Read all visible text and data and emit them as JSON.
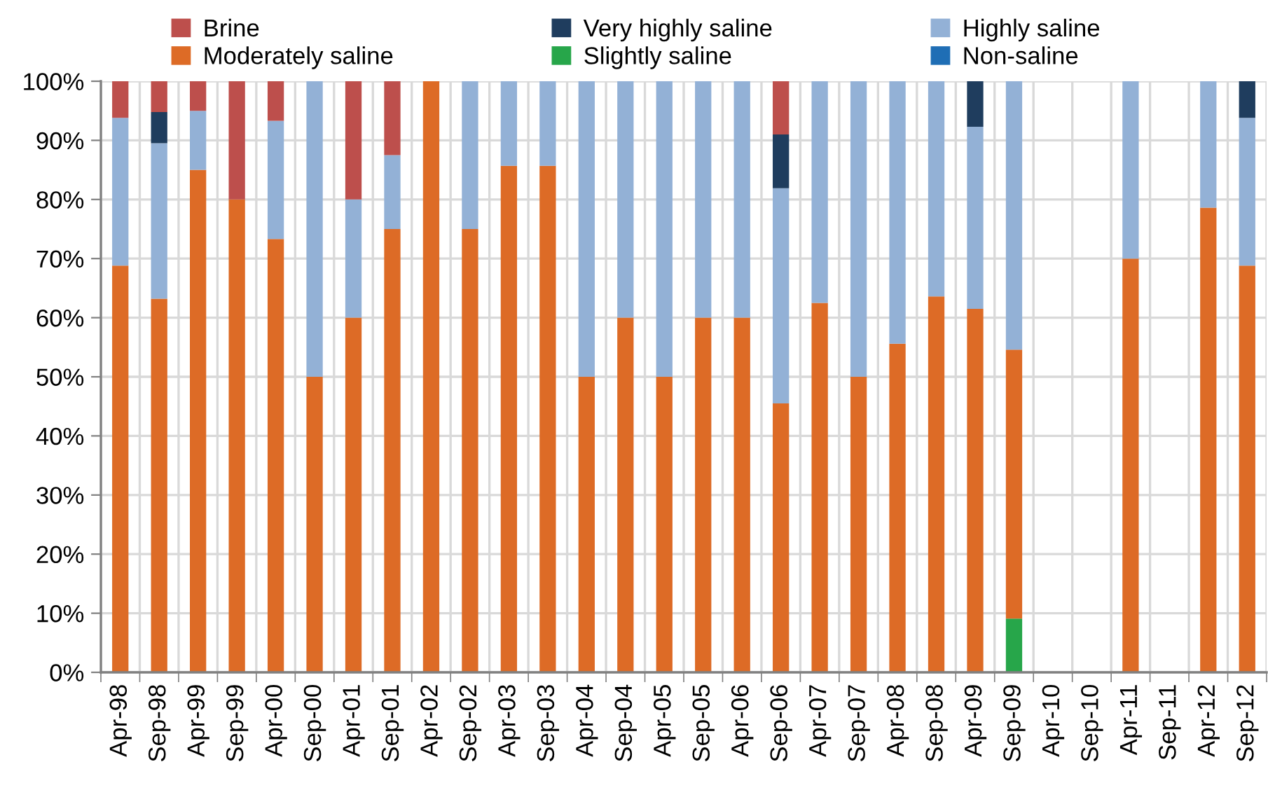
{
  "chart_data": {
    "type": "bar",
    "stacked": true,
    "categories": [
      "Apr-98",
      "Sep-98",
      "Apr-99",
      "Sep-99",
      "Apr-00",
      "Sep-00",
      "Apr-01",
      "Sep-01",
      "Apr-02",
      "Sep-02",
      "Apr-03",
      "Sep-03",
      "Apr-04",
      "Sep-04",
      "Apr-05",
      "Sep-05",
      "Apr-06",
      "Sep-06",
      "Apr-07",
      "Sep-07",
      "Apr-08",
      "Sep-08",
      "Apr-09",
      "Sep-09",
      "Apr-10",
      "Sep-10",
      "Apr-11",
      "Sep-11",
      "Apr-12",
      "Sep-12"
    ],
    "series": [
      {
        "name": "Non-saline",
        "color": "#1f6eb5",
        "values": [
          0,
          0,
          0,
          0,
          0,
          0,
          0,
          0,
          0,
          0,
          0,
          0,
          0,
          0,
          0,
          0,
          0,
          0,
          0,
          0,
          0,
          0,
          0,
          0,
          null,
          null,
          0,
          null,
          0,
          0
        ]
      },
      {
        "name": "Slightly saline",
        "color": "#27a64a",
        "values": [
          0,
          0,
          0,
          0,
          0,
          0,
          0,
          0,
          0,
          0,
          0,
          0,
          0,
          0,
          0,
          0,
          0,
          0,
          0,
          0,
          0,
          0,
          0,
          9.1,
          null,
          null,
          0,
          null,
          0,
          0
        ]
      },
      {
        "name": "Moderately saline",
        "color": "#dd6b26",
        "values": [
          68.8,
          63.2,
          85,
          80,
          73.3,
          50,
          60,
          75,
          100,
          75,
          85.7,
          85.7,
          50,
          60,
          50,
          60,
          60,
          45.5,
          62.5,
          50,
          55.6,
          63.6,
          61.5,
          45.5,
          null,
          null,
          70,
          null,
          78.6,
          68.8
        ]
      },
      {
        "name": "Highly saline",
        "color": "#93b1d6",
        "values": [
          25,
          26.3,
          10,
          0,
          20,
          50,
          20,
          12.5,
          0,
          25,
          14.3,
          14.3,
          50,
          40,
          50,
          40,
          40,
          36.4,
          37.5,
          50,
          44.4,
          36.4,
          30.8,
          45.4,
          null,
          null,
          30,
          null,
          21.4,
          25
        ]
      },
      {
        "name": "Very highly saline",
        "color": "#1f3d5e",
        "values": [
          0,
          5.3,
          0,
          0,
          0,
          0,
          0,
          0,
          0,
          0,
          0,
          0,
          0,
          0,
          0,
          0,
          0,
          9.1,
          0,
          0,
          0,
          0,
          7.7,
          0,
          null,
          null,
          0,
          null,
          0,
          6.2
        ]
      },
      {
        "name": "Brine",
        "color": "#bd4f4c",
        "values": [
          6.2,
          5.2,
          5,
          20,
          6.7,
          0,
          20,
          12.5,
          0,
          0,
          0,
          0,
          0,
          0,
          0,
          0,
          0,
          9.1,
          0,
          0,
          0,
          0,
          0,
          0,
          null,
          null,
          0,
          null,
          0,
          0
        ]
      }
    ],
    "ylim": [
      0,
      100
    ],
    "yticks": [
      {
        "value": 0,
        "label": "0%"
      },
      {
        "value": 10,
        "label": "10%"
      },
      {
        "value": 20,
        "label": "20%"
      },
      {
        "value": 30,
        "label": "30%"
      },
      {
        "value": 40,
        "label": "40%"
      },
      {
        "value": 50,
        "label": "50%"
      },
      {
        "value": 60,
        "label": "60%"
      },
      {
        "value": 70,
        "label": "70%"
      },
      {
        "value": 80,
        "label": "80%"
      },
      {
        "value": 90,
        "label": "90%"
      },
      {
        "value": 100,
        "label": "100%"
      }
    ],
    "grid": true,
    "legend": "top"
  }
}
